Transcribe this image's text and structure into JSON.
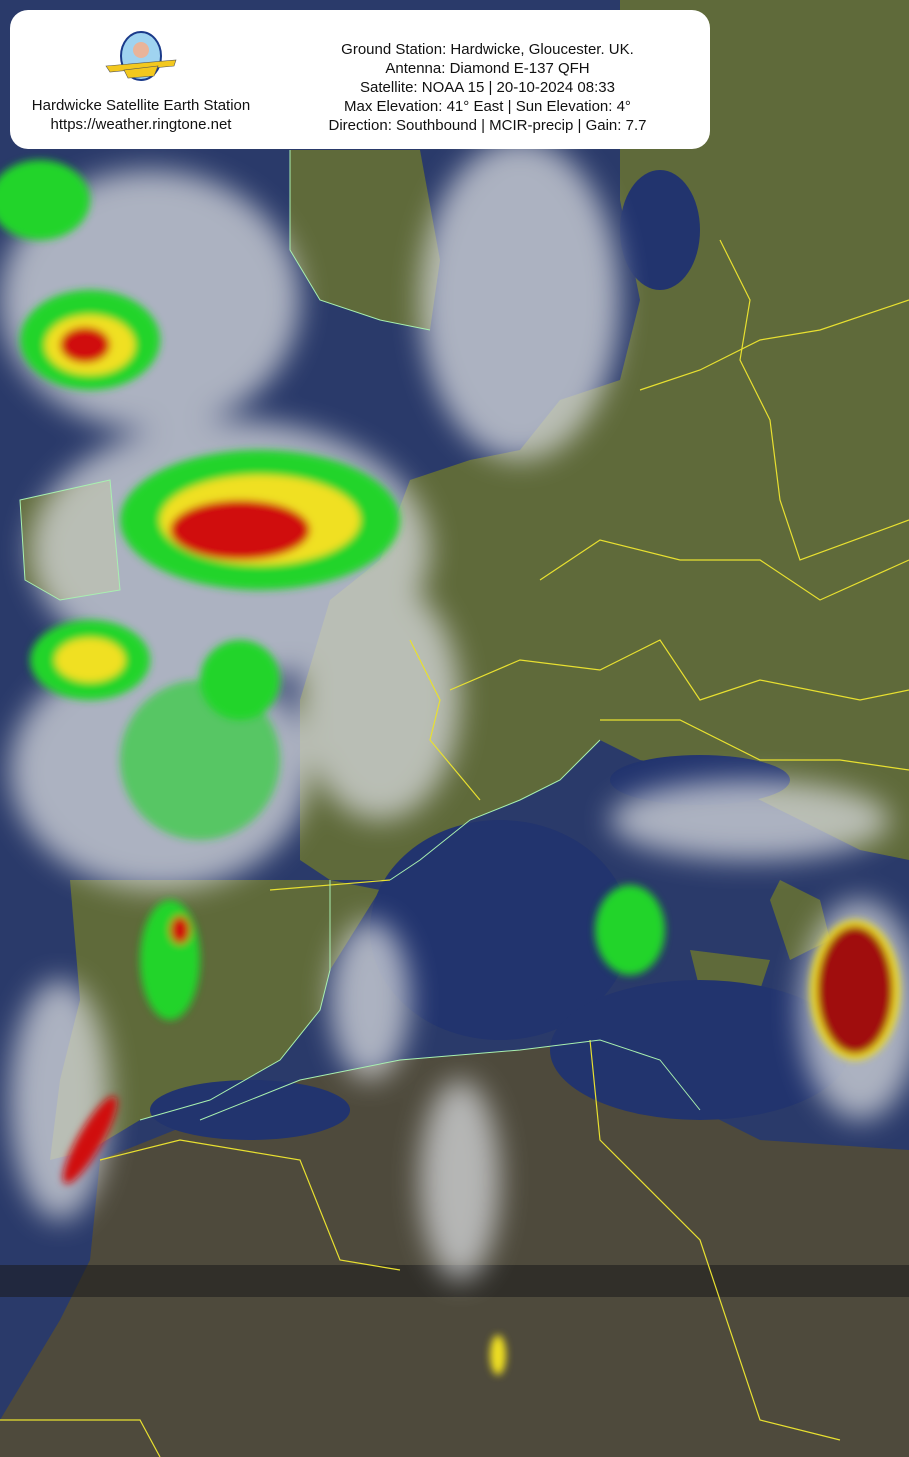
{
  "header": {
    "station_name": "Hardwicke Satellite Earth Station",
    "url": "https://weather.ringtone.net",
    "logo_icon": "plane-pilot-logo",
    "info_lines": [
      "Ground Station: Hardwicke, Gloucester. UK.",
      "Antenna: Diamond E-137 QFH",
      "Satellite: NOAA 15 | 20-10-2024 08:33",
      "Max Elevation: 41° East | Sun Elevation: 4°",
      "Direction: Southbound | MCIR-precip | Gain: 7.7"
    ]
  },
  "colors": {
    "sea": "#22346e",
    "land": "#5f6a3a",
    "desert": "#4e4a3c",
    "cloud": "#d8dade",
    "precip_light": "#22d42a",
    "precip_mid": "#f0e020",
    "precip_heavy": "#d01010",
    "borders": "#e8e030",
    "coastline": "#a8f0b0"
  }
}
